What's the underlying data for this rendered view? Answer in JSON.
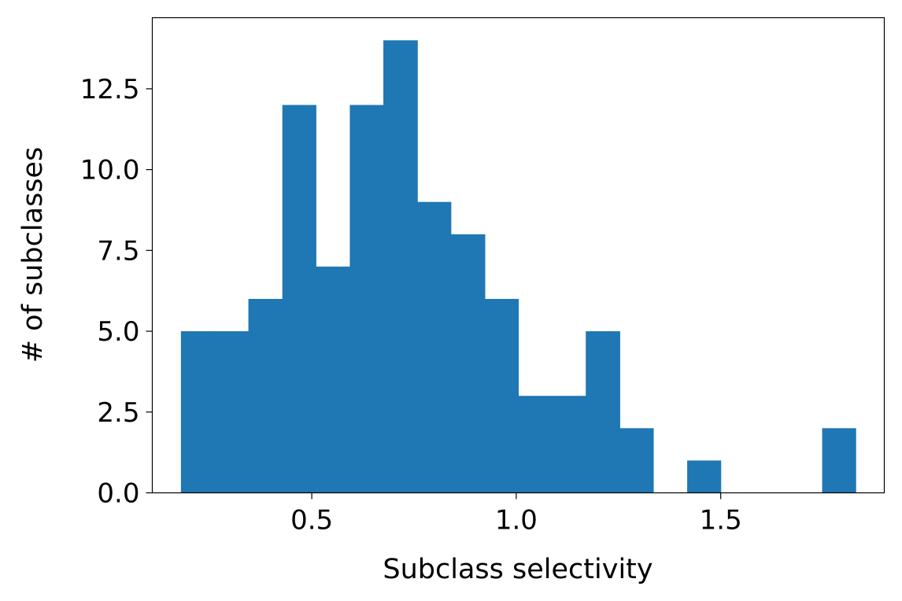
{
  "chart_data": {
    "type": "bar",
    "title": "",
    "xlabel": "Subclass selectivity",
    "ylabel": "# of subclasses",
    "xlim": [
      0.11,
      1.9
    ],
    "ylim": [
      0,
      14.7
    ],
    "grid": false,
    "bar_color": "#1f77b4",
    "bins": [
      {
        "x0": 0.18,
        "x1": 0.263,
        "count": 5
      },
      {
        "x0": 0.263,
        "x1": 0.345,
        "count": 5
      },
      {
        "x0": 0.345,
        "x1": 0.428,
        "count": 6
      },
      {
        "x0": 0.428,
        "x1": 0.51,
        "count": 12
      },
      {
        "x0": 0.51,
        "x1": 0.593,
        "count": 7
      },
      {
        "x0": 0.593,
        "x1": 0.675,
        "count": 12
      },
      {
        "x0": 0.675,
        "x1": 0.758,
        "count": 14
      },
      {
        "x0": 0.758,
        "x1": 0.84,
        "count": 9
      },
      {
        "x0": 0.84,
        "x1": 0.923,
        "count": 8
      },
      {
        "x0": 0.923,
        "x1": 1.005,
        "count": 6
      },
      {
        "x0": 1.005,
        "x1": 1.088,
        "count": 3
      },
      {
        "x0": 1.088,
        "x1": 1.17,
        "count": 3
      },
      {
        "x0": 1.17,
        "x1": 1.253,
        "count": 5
      },
      {
        "x0": 1.253,
        "x1": 1.335,
        "count": 2
      },
      {
        "x0": 1.335,
        "x1": 1.418,
        "count": 0
      },
      {
        "x0": 1.418,
        "x1": 1.5,
        "count": 1
      },
      {
        "x0": 1.5,
        "x1": 1.583,
        "count": 0
      },
      {
        "x0": 1.583,
        "x1": 1.665,
        "count": 0
      },
      {
        "x0": 1.665,
        "x1": 1.748,
        "count": 0
      },
      {
        "x0": 1.748,
        "x1": 1.83,
        "count": 2
      }
    ],
    "x_ticks": [
      {
        "value": 0.5,
        "label": "0.5"
      },
      {
        "value": 1.0,
        "label": "1.0"
      },
      {
        "value": 1.5,
        "label": "1.5"
      }
    ],
    "y_ticks": [
      {
        "value": 0,
        "label": "0.0"
      },
      {
        "value": 2.5,
        "label": "2.5"
      },
      {
        "value": 5,
        "label": "5.0"
      },
      {
        "value": 7.5,
        "label": "7.5"
      },
      {
        "value": 10,
        "label": "10.0"
      },
      {
        "value": 12.5,
        "label": "12.5"
      }
    ]
  }
}
